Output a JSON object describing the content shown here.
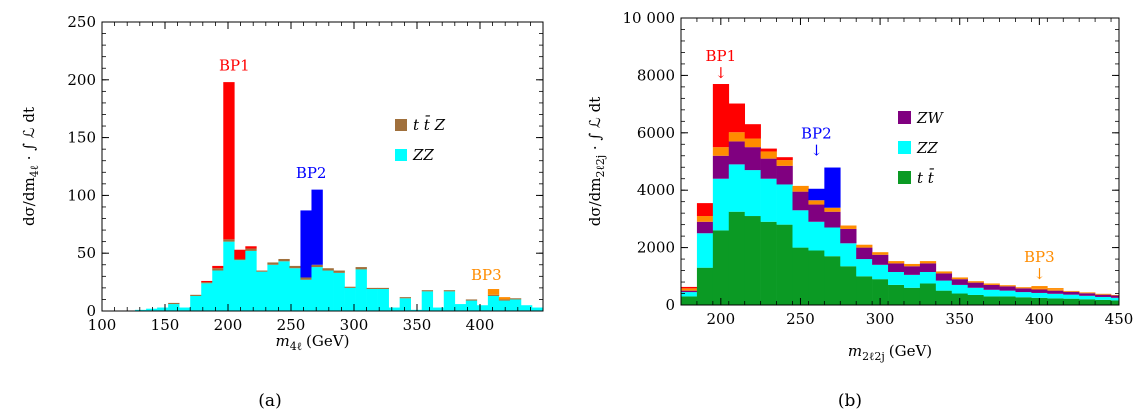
{
  "chart_data": [
    {
      "type": "bar",
      "panel": "(a)",
      "xlabel_main": "m",
      "xlabel_sub": "4ℓ",
      "xlabel_unit": "(GeV)",
      "ylabel_pre": "dσ/dm",
      "ylabel_sub": "4ℓ",
      "ylabel_post": " · ∫ ℒ dt",
      "xlim": [
        100,
        450
      ],
      "ylim": [
        0,
        250
      ],
      "xticks": [
        100,
        150,
        200,
        250,
        300,
        350,
        400
      ],
      "yticks": [
        0,
        50,
        100,
        150,
        200,
        250
      ],
      "bin_edges": [
        100,
        108.75,
        117.5,
        126.25,
        135,
        143.75,
        152.5,
        161.25,
        170,
        178.75,
        187.5,
        196.25,
        205,
        213.75,
        222.5,
        231.25,
        240,
        248.75,
        257.5,
        266.25,
        275,
        283.75,
        292.5,
        301.25,
        310,
        318.75,
        327.5,
        336.25,
        345,
        353.75,
        362.5,
        371.25,
        380,
        388.75,
        397.5,
        406.25,
        415,
        423.75,
        432.5,
        441.25,
        450
      ],
      "series": [
        {
          "name": "ZZ",
          "color": "#00FFFF",
          "values": [
            0,
            0,
            0,
            1,
            2,
            3,
            6,
            3,
            13,
            24,
            35,
            60,
            44,
            52,
            34,
            40,
            43,
            37,
            27,
            38,
            35,
            33,
            20,
            36,
            19,
            19,
            3,
            11,
            1,
            17,
            3,
            17,
            6,
            9,
            5,
            13,
            9,
            10,
            5,
            3
          ]
        },
        {
          "name": "t t̄ Z",
          "color": "#A0703C",
          "values": [
            0,
            0,
            0,
            0,
            0,
            0,
            1,
            0,
            1,
            1,
            2,
            2,
            1,
            2,
            1,
            2,
            2,
            2,
            2,
            2,
            2,
            2,
            1,
            2,
            1,
            1,
            0,
            1,
            0,
            1,
            0,
            1,
            0,
            1,
            0,
            1,
            1,
            1,
            0,
            0
          ]
        },
        {
          "name": "BP1",
          "color": "#FF0000",
          "values": [
            0,
            0,
            0,
            0,
            0,
            0,
            0,
            0,
            0,
            1,
            2,
            136,
            8,
            2,
            0,
            0,
            0,
            0,
            0,
            0,
            0,
            0,
            0,
            0,
            0,
            0,
            0,
            0,
            0,
            0,
            0,
            0,
            0,
            0,
            0,
            0,
            0,
            0,
            0,
            0
          ]
        },
        {
          "name": "BP2",
          "color": "#0000FF",
          "values": [
            0,
            0,
            0,
            0,
            0,
            0,
            0,
            0,
            0,
            0,
            0,
            0,
            0,
            0,
            0,
            0,
            0,
            0,
            58,
            65,
            0,
            0,
            0,
            0,
            0,
            0,
            0,
            0,
            0,
            0,
            0,
            0,
            0,
            0,
            0,
            0,
            0,
            0,
            0,
            0
          ]
        },
        {
          "name": "BP3",
          "color": "#FF8C00",
          "values": [
            0,
            0,
            0,
            0,
            0,
            0,
            0,
            0,
            0,
            0,
            0,
            0,
            0,
            0,
            0,
            0,
            0,
            0,
            0,
            0,
            0,
            0,
            0,
            0,
            0,
            0,
            0,
            0,
            0,
            0,
            0,
            0,
            0,
            0,
            0,
            5,
            2,
            0,
            0,
            0
          ]
        }
      ],
      "legend": [
        {
          "label": "t t̄ Z",
          "color": "#A0703C"
        },
        {
          "label": "ZZ",
          "color": "#00FFFF"
        }
      ],
      "annotations": [
        {
          "text": "BP1",
          "color": "#FF0000",
          "x": 205,
          "y": 208,
          "arrow": false
        },
        {
          "text": "BP2",
          "color": "#0000FF",
          "x": 266,
          "y": 115,
          "arrow": false
        },
        {
          "text": "BP3",
          "color": "#FF8C00",
          "x": 405,
          "y": 27,
          "arrow": false
        }
      ]
    },
    {
      "type": "bar",
      "panel": "(b)",
      "xlabel_main": "m",
      "xlabel_sub": "2ℓ2j",
      "xlabel_unit": "(GeV)",
      "ylabel_pre": "dσ/dm",
      "ylabel_sub": "2ℓ2j",
      "ylabel_post": " · ∫ ℒ dt",
      "xlim": [
        175,
        450
      ],
      "ylim": [
        0,
        10000
      ],
      "xticks": [
        200,
        250,
        300,
        350,
        400,
        450
      ],
      "yticks": [
        0,
        2000,
        4000,
        6000,
        8000,
        10000
      ],
      "ytick_labels": [
        "0",
        "2000",
        "4000",
        "6000",
        "8000",
        "10 000"
      ],
      "bin_edges": [
        175,
        185,
        195,
        205,
        215,
        225,
        235,
        245,
        255,
        265,
        275,
        285,
        295,
        305,
        315,
        325,
        335,
        345,
        355,
        365,
        375,
        385,
        395,
        405,
        415,
        425,
        435,
        445,
        450
      ],
      "series": [
        {
          "name": "t t̄",
          "color": "#0B9A24",
          "values": [
            300,
            1300,
            2600,
            3250,
            3100,
            2900,
            2800,
            2000,
            1900,
            1700,
            1350,
            1000,
            900,
            700,
            600,
            750,
            500,
            400,
            350,
            300,
            300,
            270,
            250,
            230,
            220,
            200,
            180,
            160
          ]
        },
        {
          "name": "ZZ",
          "color": "#00FFFF",
          "values": [
            150,
            1200,
            1800,
            1650,
            1600,
            1500,
            1400,
            1300,
            1000,
            1000,
            800,
            600,
            500,
            450,
            450,
            400,
            350,
            300,
            250,
            230,
            200,
            180,
            170,
            160,
            140,
            120,
            100,
            90
          ]
        },
        {
          "name": "ZW",
          "color": "#800080",
          "values": [
            50,
            400,
            800,
            800,
            800,
            700,
            650,
            650,
            600,
            550,
            500,
            400,
            350,
            300,
            300,
            300,
            250,
            200,
            180,
            170,
            150,
            130,
            120,
            110,
            100,
            90,
            80,
            80
          ]
        },
        {
          "name": "Orange",
          "color": "#FF8C00",
          "values": [
            80,
            200,
            300,
            320,
            300,
            250,
            200,
            200,
            150,
            140,
            120,
            100,
            90,
            80,
            80,
            80,
            70,
            60,
            50,
            50,
            40,
            40,
            40,
            30,
            30,
            30,
            30,
            20
          ]
        },
        {
          "name": "BP1",
          "color": "#FF0000",
          "values": [
            50,
            450,
            2200,
            1000,
            500,
            100,
            100,
            0,
            0,
            0,
            0,
            0,
            0,
            0,
            0,
            0,
            0,
            0,
            0,
            0,
            0,
            0,
            0,
            0,
            0,
            0,
            0,
            0
          ]
        },
        {
          "name": "BP2",
          "color": "#0000FF",
          "values": [
            0,
            0,
            0,
            0,
            0,
            0,
            0,
            0,
            400,
            1400,
            0,
            0,
            0,
            0,
            0,
            0,
            0,
            0,
            0,
            0,
            0,
            0,
            0,
            0,
            0,
            0,
            0,
            0
          ]
        },
        {
          "name": "BP3",
          "color": "#FF8C00",
          "values": [
            0,
            0,
            0,
            0,
            0,
            0,
            0,
            0,
            0,
            0,
            0,
            0,
            0,
            0,
            0,
            0,
            0,
            0,
            0,
            0,
            0,
            0,
            80,
            60,
            0,
            0,
            0,
            0
          ]
        }
      ],
      "legend": [
        {
          "label": "ZW",
          "color": "#800080"
        },
        {
          "label": "ZZ",
          "color": "#00FFFF"
        },
        {
          "label": "t t̄",
          "color": "#0B9A24"
        }
      ],
      "annotations": [
        {
          "text": "BP1",
          "color": "#FF0000",
          "x": 200,
          "y": 8500,
          "arrow": true
        },
        {
          "text": "BP2",
          "color": "#0000FF",
          "x": 260,
          "y": 5800,
          "arrow": true
        },
        {
          "text": "BP3",
          "color": "#FF8C00",
          "x": 400,
          "y": 1500,
          "arrow": true
        }
      ]
    }
  ]
}
